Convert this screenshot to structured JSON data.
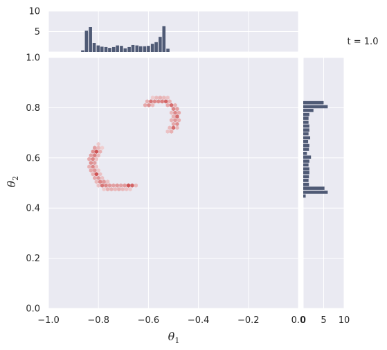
{
  "chart_data": {
    "type": "heatmap",
    "subtype": "jointplot-hexbin",
    "annotation": "t = 1.0",
    "xlabel": "θ",
    "xlabel_sub": "1",
    "ylabel": "θ",
    "ylabel_sub": "2",
    "xlim": [
      -1.0,
      0.0
    ],
    "ylim": [
      0.0,
      1.0
    ],
    "x_ticks": [
      -1.0,
      -0.8,
      -0.6,
      -0.4,
      -0.2,
      0.0
    ],
    "x_tick_labels": [
      "−1.0",
      "−0.8",
      "−0.6",
      "−0.4",
      "−0.2",
      "0.0"
    ],
    "y_ticks": [
      0.0,
      0.2,
      0.4,
      0.6,
      0.8,
      1.0
    ],
    "y_tick_labels": [
      "0.0",
      "0.2",
      "0.4",
      "0.6",
      "0.8",
      "1.0"
    ],
    "grid": true,
    "colors": {
      "panel_bg": "#eaeaf2",
      "grid": "#ffffff",
      "hist_bar": "#4f5a75",
      "hex_high": "#c83a3a"
    },
    "marginal_x": {
      "ylim": [
        0,
        10
      ],
      "ticks": [
        5,
        10
      ],
      "tick_labels": [
        "5",
        "10"
      ],
      "bin_width": 0.0155,
      "bins": [
        [
          -0.863,
          0.4
        ],
        [
          -0.848,
          5.2
        ],
        [
          -0.832,
          6.1
        ],
        [
          -0.817,
          2.2
        ],
        [
          -0.801,
          1.6
        ],
        [
          -0.786,
          1.3
        ],
        [
          -0.77,
          1.2
        ],
        [
          -0.755,
          1.0
        ],
        [
          -0.739,
          1.2
        ],
        [
          -0.724,
          1.6
        ],
        [
          -0.708,
          1.5
        ],
        [
          -0.693,
          0.9
        ],
        [
          -0.677,
          1.2
        ],
        [
          -0.662,
          1.7
        ],
        [
          -0.646,
          1.6
        ],
        [
          -0.631,
          1.4
        ],
        [
          -0.615,
          1.4
        ],
        [
          -0.6,
          1.5
        ],
        [
          -0.584,
          2.0
        ],
        [
          -0.569,
          2.4
        ],
        [
          -0.553,
          3.7
        ],
        [
          -0.538,
          6.3
        ],
        [
          -0.522,
          0.8
        ]
      ]
    },
    "marginal_y": {
      "xlim": [
        0,
        10
      ],
      "ticks": [
        0,
        5,
        10
      ],
      "tick_labels": [
        "0",
        "5",
        "10"
      ],
      "bin_width": 0.0155,
      "bins": [
        [
          0.448,
          0.6
        ],
        [
          0.463,
          6.0
        ],
        [
          0.479,
          5.2
        ],
        [
          0.494,
          1.4
        ],
        [
          0.51,
          1.3
        ],
        [
          0.525,
          1.4
        ],
        [
          0.541,
          1.5
        ],
        [
          0.556,
          1.5
        ],
        [
          0.572,
          1.3
        ],
        [
          0.587,
          1.5
        ],
        [
          0.603,
          1.9
        ],
        [
          0.618,
          0.9
        ],
        [
          0.634,
          1.4
        ],
        [
          0.649,
          1.5
        ],
        [
          0.665,
          1.2
        ],
        [
          0.68,
          1.7
        ],
        [
          0.696,
          1.3
        ],
        [
          0.711,
          1.5
        ],
        [
          0.727,
          1.5
        ],
        [
          0.742,
          1.3
        ],
        [
          0.758,
          1.3
        ],
        [
          0.773,
          1.5
        ],
        [
          0.789,
          2.5
        ],
        [
          0.804,
          6.0
        ],
        [
          0.82,
          5.0
        ]
      ]
    },
    "hexbins": {
      "hex_radius": 0.0085,
      "cells": [
        [
          -0.8,
          0.655,
          0.15
        ],
        [
          -0.815,
          0.64,
          0.4
        ],
        [
          -0.8,
          0.64,
          0.25
        ],
        [
          -0.785,
          0.64,
          0.12
        ],
        [
          -0.822,
          0.625,
          0.5
        ],
        [
          -0.808,
          0.625,
          0.85
        ],
        [
          -0.793,
          0.625,
          0.3
        ],
        [
          -0.83,
          0.61,
          0.4
        ],
        [
          -0.815,
          0.61,
          0.6
        ],
        [
          -0.8,
          0.61,
          0.25
        ],
        [
          -0.837,
          0.595,
          0.35
        ],
        [
          -0.822,
          0.595,
          0.55
        ],
        [
          -0.808,
          0.595,
          0.2
        ],
        [
          -0.83,
          0.58,
          0.5
        ],
        [
          -0.815,
          0.58,
          0.4
        ],
        [
          -0.837,
          0.565,
          0.3
        ],
        [
          -0.822,
          0.565,
          0.55
        ],
        [
          -0.808,
          0.565,
          0.2
        ],
        [
          -0.83,
          0.55,
          0.35
        ],
        [
          -0.815,
          0.55,
          0.45
        ],
        [
          -0.8,
          0.55,
          0.15
        ],
        [
          -0.822,
          0.535,
          0.3
        ],
        [
          -0.808,
          0.535,
          0.85
        ],
        [
          -0.793,
          0.535,
          0.2
        ],
        [
          -0.815,
          0.52,
          0.35
        ],
        [
          -0.8,
          0.52,
          0.45
        ],
        [
          -0.785,
          0.52,
          0.2
        ],
        [
          -0.808,
          0.505,
          0.25
        ],
        [
          -0.793,
          0.505,
          0.55
        ],
        [
          -0.778,
          0.505,
          0.45
        ],
        [
          -0.763,
          0.505,
          0.2
        ],
        [
          -0.8,
          0.49,
          0.2
        ],
        [
          -0.785,
          0.49,
          0.65
        ],
        [
          -0.77,
          0.49,
          0.55
        ],
        [
          -0.755,
          0.49,
          0.45
        ],
        [
          -0.74,
          0.49,
          0.4
        ],
        [
          -0.725,
          0.49,
          0.45
        ],
        [
          -0.71,
          0.49,
          0.4
        ],
        [
          -0.695,
          0.49,
          0.45
        ],
        [
          -0.68,
          0.49,
          0.85
        ],
        [
          -0.665,
          0.49,
          0.75
        ],
        [
          -0.65,
          0.49,
          0.25
        ],
        [
          -0.778,
          0.475,
          0.15
        ],
        [
          -0.763,
          0.475,
          0.3
        ],
        [
          -0.748,
          0.475,
          0.3
        ],
        [
          -0.733,
          0.475,
          0.25
        ],
        [
          -0.718,
          0.475,
          0.3
        ],
        [
          -0.703,
          0.475,
          0.25
        ],
        [
          -0.688,
          0.475,
          0.2
        ],
        [
          -0.673,
          0.475,
          0.15
        ],
        [
          -0.583,
          0.84,
          0.15
        ],
        [
          -0.568,
          0.84,
          0.25
        ],
        [
          -0.553,
          0.84,
          0.3
        ],
        [
          -0.538,
          0.84,
          0.25
        ],
        [
          -0.523,
          0.84,
          0.2
        ],
        [
          -0.605,
          0.825,
          0.3
        ],
        [
          -0.59,
          0.825,
          0.65
        ],
        [
          -0.575,
          0.825,
          0.55
        ],
        [
          -0.56,
          0.825,
          0.55
        ],
        [
          -0.545,
          0.825,
          0.6
        ],
        [
          -0.53,
          0.825,
          0.75
        ],
        [
          -0.515,
          0.825,
          0.3
        ],
        [
          -0.613,
          0.81,
          0.35
        ],
        [
          -0.598,
          0.81,
          0.5
        ],
        [
          -0.583,
          0.81,
          0.25
        ],
        [
          -0.523,
          0.81,
          0.35
        ],
        [
          -0.508,
          0.81,
          0.7
        ],
        [
          -0.493,
          0.81,
          0.3
        ],
        [
          -0.5,
          0.795,
          0.55
        ],
        [
          -0.485,
          0.795,
          0.4
        ],
        [
          -0.508,
          0.78,
          0.25
        ],
        [
          -0.493,
          0.78,
          0.55
        ],
        [
          -0.478,
          0.78,
          0.35
        ],
        [
          -0.5,
          0.765,
          0.3
        ],
        [
          -0.485,
          0.765,
          0.7
        ],
        [
          -0.508,
          0.75,
          0.3
        ],
        [
          -0.493,
          0.75,
          0.45
        ],
        [
          -0.478,
          0.75,
          0.3
        ],
        [
          -0.5,
          0.735,
          0.35
        ],
        [
          -0.485,
          0.735,
          0.5
        ],
        [
          -0.515,
          0.72,
          0.25
        ],
        [
          -0.5,
          0.72,
          0.7
        ],
        [
          -0.485,
          0.72,
          0.25
        ],
        [
          -0.523,
          0.705,
          0.2
        ],
        [
          -0.508,
          0.705,
          0.3
        ]
      ]
    }
  }
}
